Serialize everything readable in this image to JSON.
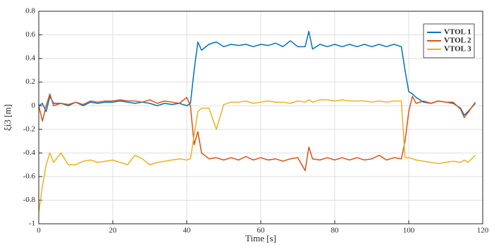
{
  "chart_data": {
    "type": "line",
    "xlabel": "Time [s]",
    "ylabel": "ξi3 [m]",
    "x": [
      0,
      1,
      2,
      3,
      4,
      6,
      8,
      10,
      12,
      14,
      16,
      18,
      20,
      22,
      24,
      26,
      28,
      30,
      32,
      34,
      36,
      38,
      40,
      41,
      42,
      43,
      44,
      46,
      48,
      50,
      52,
      54,
      56,
      58,
      60,
      62,
      64,
      66,
      68,
      70,
      72,
      73,
      74,
      76,
      78,
      80,
      82,
      84,
      86,
      88,
      90,
      92,
      94,
      96,
      98,
      99,
      100,
      101,
      102,
      104,
      106,
      108,
      110,
      112,
      114,
      115,
      116,
      118
    ],
    "series": [
      {
        "name": "VTOL 1",
        "color": "#0072BD",
        "values": [
          0,
          0.02,
          -0.05,
          0.08,
          0.02,
          0.02,
          0,
          0.03,
          0,
          0.03,
          0.02,
          0.03,
          0.03,
          0.04,
          0.03,
          0.02,
          0.03,
          0.02,
          0,
          0.02,
          0.01,
          0.02,
          0,
          0.02,
          0.3,
          0.54,
          0.47,
          0.52,
          0.54,
          0.5,
          0.52,
          0.51,
          0.52,
          0.5,
          0.52,
          0.51,
          0.53,
          0.5,
          0.55,
          0.5,
          0.5,
          0.63,
          0.48,
          0.52,
          0.5,
          0.52,
          0.5,
          0.52,
          0.5,
          0.52,
          0.5,
          0.52,
          0.5,
          0.52,
          0.5,
          0.3,
          0.12,
          0.1,
          0.07,
          0.03,
          0.02,
          0.04,
          0.03,
          0.02,
          -0.02,
          -0.08,
          -0.05,
          0.02
        ]
      },
      {
        "name": "VTOL 2",
        "color": "#D95319",
        "values": [
          0,
          -0.13,
          0,
          0.1,
          0,
          0.02,
          0.01,
          0.03,
          0.01,
          0.04,
          0.03,
          0.04,
          0.04,
          0.05,
          0.04,
          0.04,
          0.03,
          0.05,
          0.02,
          0.04,
          0.03,
          0.02,
          0.07,
          0,
          -0.33,
          -0.22,
          -0.4,
          -0.45,
          -0.44,
          -0.46,
          -0.44,
          -0.46,
          -0.43,
          -0.46,
          -0.44,
          -0.46,
          -0.45,
          -0.47,
          -0.45,
          -0.44,
          -0.55,
          -0.35,
          -0.45,
          -0.46,
          -0.44,
          -0.46,
          -0.44,
          -0.46,
          -0.44,
          -0.46,
          -0.45,
          -0.42,
          -0.46,
          -0.44,
          -0.45,
          -0.3,
          -0.05,
          0.08,
          0.02,
          0.04,
          0.02,
          0.04,
          0.03,
          0.03,
          -0.03,
          -0.1,
          -0.06,
          0.03
        ]
      },
      {
        "name": "VTOL 3",
        "color": "#EDB120",
        "values": [
          -0.9,
          -0.68,
          -0.5,
          -0.4,
          -0.48,
          -0.4,
          -0.5,
          -0.5,
          -0.47,
          -0.46,
          -0.48,
          -0.47,
          -0.46,
          -0.48,
          -0.5,
          -0.42,
          -0.45,
          -0.5,
          -0.48,
          -0.47,
          -0.46,
          -0.45,
          -0.46,
          -0.45,
          -0.25,
          -0.05,
          -0.02,
          -0.02,
          -0.2,
          0.01,
          0.03,
          0.03,
          0.04,
          0.02,
          0.03,
          0.04,
          0.03,
          0.03,
          0.02,
          0.04,
          0.03,
          0.05,
          0.03,
          0.05,
          0.05,
          0.04,
          0.05,
          0.04,
          0.04,
          0.04,
          0.03,
          0.04,
          0.03,
          0.04,
          0.04,
          -0.44,
          -0.44,
          -0.45,
          -0.46,
          -0.47,
          -0.48,
          -0.49,
          -0.48,
          -0.47,
          -0.48,
          -0.46,
          -0.48,
          -0.42
        ]
      }
    ],
    "xlim": [
      0,
      120
    ],
    "xticks": [
      0,
      20,
      40,
      60,
      80,
      100,
      120
    ],
    "ylim": [
      -1,
      0.8
    ],
    "yticks": [
      -1,
      -0.8,
      -0.6,
      -0.4,
      -0.2,
      0,
      0.2,
      0.4,
      0.6,
      0.8
    ],
    "grid": true,
    "legend": "top-right"
  }
}
